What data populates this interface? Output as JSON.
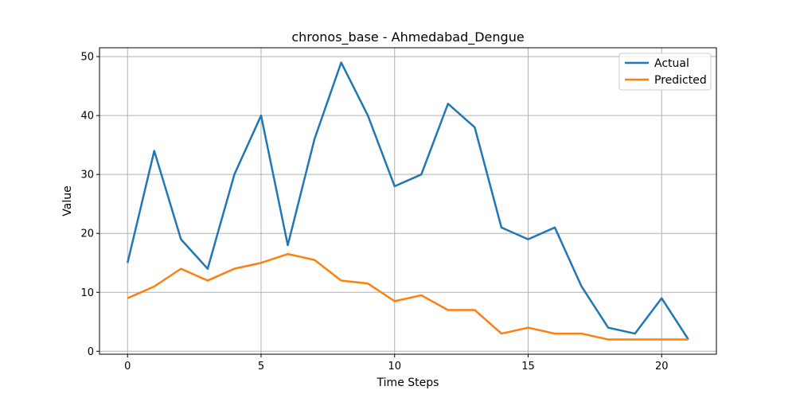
{
  "chart_data": {
    "type": "line",
    "title": "chronos_base - Ahmedabad_Dengue",
    "xlabel": "Time Steps",
    "ylabel": "Value",
    "x": [
      0,
      1,
      2,
      3,
      4,
      5,
      6,
      7,
      8,
      9,
      10,
      11,
      12,
      13,
      14,
      15,
      16,
      17,
      18,
      19,
      20,
      21
    ],
    "xlim": [
      -1.05,
      22.05
    ],
    "ylim": [
      -0.5,
      51.5
    ],
    "xticks": [
      0,
      5,
      10,
      15,
      20
    ],
    "yticks": [
      0,
      10,
      20,
      30,
      40,
      50
    ],
    "xtick_labels": [
      "0",
      "5",
      "10",
      "15",
      "20"
    ],
    "ytick_labels": [
      "0",
      "10",
      "20",
      "30",
      "40",
      "50"
    ],
    "grid": true,
    "legend_position": "top-right",
    "series": [
      {
        "name": "Actual",
        "color": "#1f77b4",
        "values": [
          15,
          34,
          19,
          14,
          30,
          40,
          18,
          36,
          49,
          40,
          28,
          30,
          42,
          38,
          21,
          19,
          21,
          11,
          4,
          3,
          9,
          2
        ]
      },
      {
        "name": "Predicted",
        "color": "#ff7f0e",
        "values": [
          9,
          11,
          14,
          12,
          14,
          15,
          16.5,
          15.5,
          12,
          11.5,
          8.5,
          9.5,
          7,
          7,
          3,
          4,
          3,
          3,
          2,
          2,
          2,
          2
        ]
      }
    ]
  }
}
